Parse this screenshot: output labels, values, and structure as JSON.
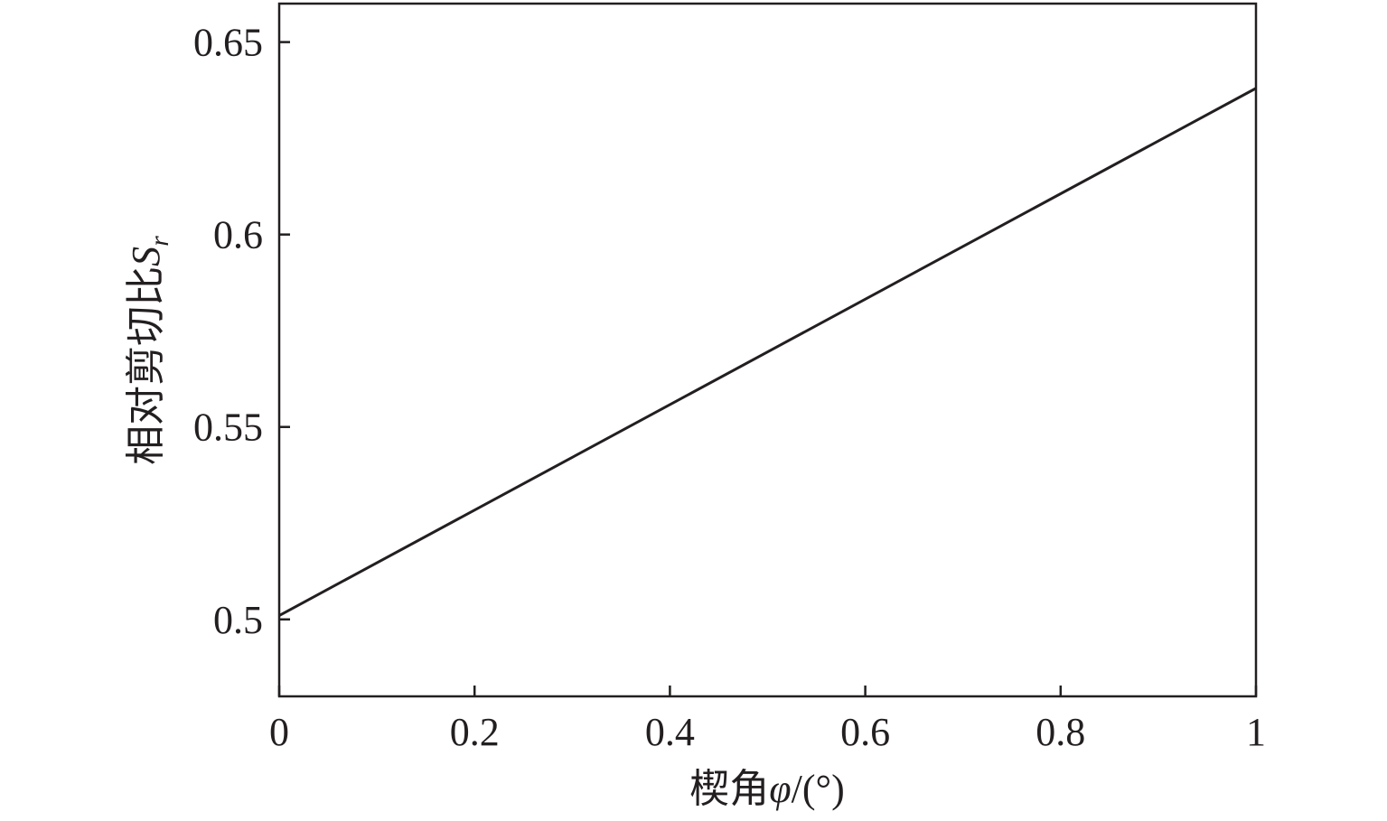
{
  "chart_data": {
    "type": "line",
    "title": "",
    "xlabel": "楔角φ/(°)",
    "xlabel_parts": {
      "prefix": "楔角",
      "symbol": "φ",
      "suffix": "/(°)"
    },
    "ylabel": "相对剪切比Sr",
    "ylabel_parts": {
      "prefix": "相对剪切比",
      "symbol": "S",
      "subscript": "r"
    },
    "xlim": [
      0,
      1
    ],
    "ylim": [
      0.48,
      0.66
    ],
    "x_ticks": [
      0,
      0.2,
      0.4,
      0.6,
      0.8,
      1
    ],
    "x_tick_labels": [
      "0",
      "0.2",
      "0.4",
      "0.6",
      "0.8",
      "1"
    ],
    "y_ticks": [
      0.5,
      0.55,
      0.6,
      0.65
    ],
    "y_tick_labels": [
      "0.5",
      "0.55",
      "0.6",
      "0.65"
    ],
    "grid": false,
    "legend": "none",
    "series": [
      {
        "x": [
          0,
          1
        ],
        "y": [
          0.501,
          0.638
        ]
      }
    ]
  }
}
